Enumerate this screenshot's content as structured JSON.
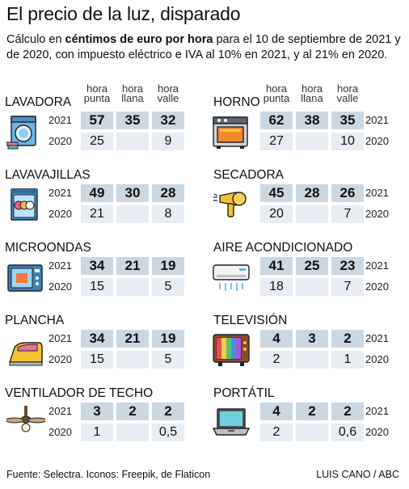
{
  "title": "El precio de la luz, disparado",
  "subtitle": {
    "pre": "Cálculo en ",
    "bold": "céntimos de euro por hora",
    "post": " para el 10 de septiembre de 2021 y de 2020, con impuesto eléctrico e IVA al 10% en 2021, y al 21% en 2020."
  },
  "headers": {
    "punta": [
      "hora",
      "punta"
    ],
    "llana": [
      "hora",
      "llana"
    ],
    "valle": [
      "hora",
      "valle"
    ]
  },
  "years": {
    "y2021": "2021",
    "y2020": "2020"
  },
  "appliances": [
    {
      "name": "LAVADORA",
      "icon": "washing-machine-icon",
      "v2021": [
        "57",
        "35",
        "32"
      ],
      "v2020": [
        "25",
        "",
        "9"
      ]
    },
    {
      "name": "HORNO",
      "icon": "oven-icon",
      "v2021": [
        "62",
        "38",
        "35"
      ],
      "v2020": [
        "27",
        "",
        "10"
      ]
    },
    {
      "name": "LAVAVAJILLAS",
      "icon": "dishwasher-icon",
      "v2021": [
        "49",
        "30",
        "28"
      ],
      "v2020": [
        "21",
        "",
        "8"
      ]
    },
    {
      "name": "SECADORA",
      "icon": "hair-dryer-icon",
      "v2021": [
        "45",
        "28",
        "26"
      ],
      "v2020": [
        "20",
        "",
        "7"
      ]
    },
    {
      "name": "MICROONDAS",
      "icon": "microwave-icon",
      "v2021": [
        "34",
        "21",
        "19"
      ],
      "v2020": [
        "15",
        "",
        "5"
      ]
    },
    {
      "name": "AIRE ACONDICIONADO",
      "icon": "air-conditioner-icon",
      "v2021": [
        "41",
        "25",
        "23"
      ],
      "v2020": [
        "18",
        "",
        "7"
      ]
    },
    {
      "name": "PLANCHA",
      "icon": "iron-icon",
      "v2021": [
        "34",
        "21",
        "19"
      ],
      "v2020": [
        "15",
        "",
        "5"
      ]
    },
    {
      "name": "TELEVISIÓN",
      "icon": "television-icon",
      "v2021": [
        "4",
        "3",
        "2"
      ],
      "v2020": [
        "2",
        "",
        "1"
      ]
    },
    {
      "name": "VENTILADOR DE TECHO",
      "icon": "ceiling-fan-icon",
      "v2021": [
        "3",
        "2",
        "2"
      ],
      "v2020": [
        "1",
        "",
        "0,5"
      ]
    },
    {
      "name": "PORTÁTIL",
      "icon": "laptop-icon",
      "v2021": [
        "4",
        "2",
        "2"
      ],
      "v2020": [
        "2",
        "",
        "0,6"
      ]
    }
  ],
  "footer": {
    "source": "Fuente: Selectra. Iconos: Freepik, de Flaticon",
    "credit": "LUIS CANO / ABC"
  }
}
